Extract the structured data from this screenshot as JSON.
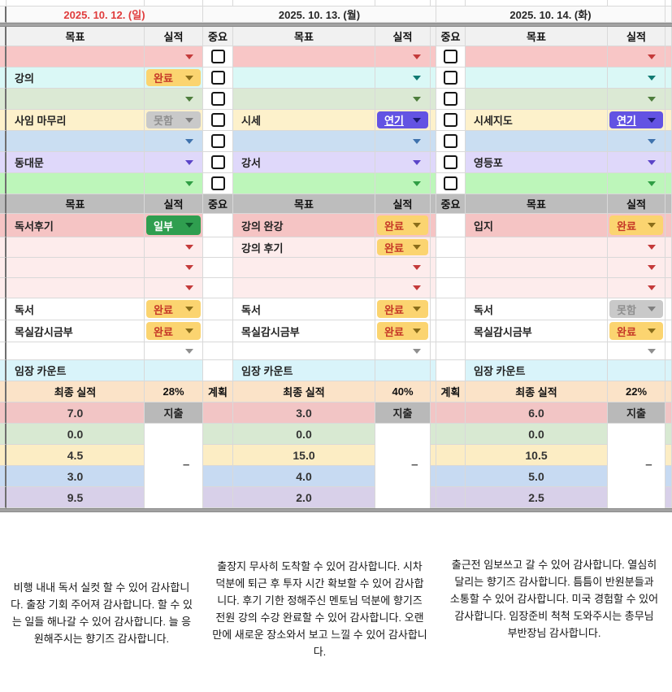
{
  "dates": [
    {
      "label": "2025. 10. 12. (일)",
      "color": "#e03c3c"
    },
    {
      "label": "2025. 10. 13. (월)",
      "color": "#262626"
    },
    {
      "label": "2025. 10. 14. (화)",
      "color": "#262626"
    }
  ],
  "column_headers": {
    "goal": "목표",
    "result": "실적",
    "important": "중요",
    "plan": "계획"
  },
  "summary": {
    "final_result_label": "최종 실적",
    "percents": [
      "28%",
      "40%",
      "22%"
    ],
    "expense_label": "지출",
    "dash": "–"
  },
  "chips": {
    "done": {
      "label": "완료",
      "bg": "#fbd470",
      "fg": "#c53727",
      "arrow": "#8a6d1a",
      "underline": false
    },
    "partial": {
      "label": "일부",
      "bg": "#2f9e4f",
      "fg": "#ffffff",
      "arrow": "#0d5c2b",
      "underline": false
    },
    "missed": {
      "label": "못함",
      "bg": "#c9c9c9",
      "fg": "#8f8f8f",
      "arrow": "#7f7f7f",
      "underline": false
    },
    "delayed": {
      "label": "연기",
      "bg": "#6353e3",
      "fg": "#ffffff",
      "arrow": "#1a1a70",
      "underline": true
    }
  },
  "arrows": {
    "red": "#c43a3a",
    "teal": "#117a72",
    "green": "#4d7d3c",
    "blue": "#3f72ad",
    "violet": "#5b44c8",
    "green2": "#2f9e44",
    "gray": "#8f8f8f"
  },
  "bands": {
    "pink": "#f8c6c6",
    "cyan": "#daf8f6",
    "sage": "#dbe9d4",
    "cream": "#fdf1cb",
    "blue": "#cadef2",
    "lav": "#dfd8fa",
    "green": "#bdf6ba",
    "pinkStrong": "#f5c4c4",
    "pinkPale": "#fdecec",
    "white": "#ffffff",
    "cyanPale": "#d9f4fa",
    "s3pink": "#f2c5c5",
    "s3green": "#d8e9d2",
    "s3cream": "#fcedc4",
    "s3blue": "#c7daf2",
    "s3purple": "#d8d0e9",
    "headerLight": "#f1f1f1",
    "headerDark": "#bdbdbd",
    "peach": "#fbe3c8",
    "expense": "#b9b9b9",
    "divider": "#a2a2a2",
    "dateBg": "#fafafa"
  },
  "section1": {
    "has_checkboxes": true,
    "rows": [
      {
        "band": "pink",
        "goals": [
          "",
          "",
          ""
        ],
        "results": [
          "arrow:red",
          "arrow:red",
          "arrow:red"
        ]
      },
      {
        "band": "cyan",
        "goals": [
          "강의",
          "",
          ""
        ],
        "results": [
          "chip:done",
          "arrow:teal",
          "arrow:teal"
        ]
      },
      {
        "band": "sage",
        "goals": [
          "",
          "",
          ""
        ],
        "results": [
          "arrow:green",
          "arrow:green",
          "arrow:green"
        ]
      },
      {
        "band": "cream",
        "goals": [
          "사임 마무리",
          "시세",
          "시세지도"
        ],
        "results": [
          "chip:missed",
          "chip:delayed",
          "chip:delayed"
        ]
      },
      {
        "band": "blue",
        "goals": [
          "",
          "",
          ""
        ],
        "results": [
          "arrow:blue",
          "arrow:blue",
          "arrow:blue"
        ]
      },
      {
        "band": "lav",
        "goals": [
          "동대문",
          "강서",
          "영등포"
        ],
        "results": [
          "arrow:violet",
          "arrow:violet",
          "arrow:violet"
        ]
      },
      {
        "band": "green",
        "goals": [
          "",
          "",
          ""
        ],
        "results": [
          "arrow:green2",
          "arrow:green2",
          "arrow:green2"
        ]
      }
    ]
  },
  "section2": {
    "has_checkboxes": false,
    "rows": [
      {
        "band": "pinkStrong",
        "goals": [
          "독서후기",
          "강의 완강",
          "입지"
        ],
        "results": [
          "chip:partial",
          "chip:done",
          "chip:done"
        ]
      },
      {
        "band": "pinkPale",
        "goals": [
          "",
          "강의 후기",
          ""
        ],
        "results": [
          "arrow:red",
          "chip:done",
          "arrow:red"
        ]
      },
      {
        "band": "pinkPale",
        "goals": [
          "",
          "",
          ""
        ],
        "results": [
          "arrow:red",
          "arrow:red",
          "arrow:red"
        ]
      },
      {
        "band": "pinkPale",
        "goals": [
          "",
          "",
          ""
        ],
        "results": [
          "arrow:red",
          "arrow:red",
          "arrow:red"
        ]
      },
      {
        "band": "white",
        "goals": [
          "독서",
          "독서",
          "독서"
        ],
        "results": [
          "chip:done",
          "chip:done",
          "chip:missed"
        ]
      },
      {
        "band": "white",
        "goals": [
          "목실감시금부",
          "목실감시금부",
          "목실감시금부"
        ],
        "results": [
          "chip:done",
          "chip:done",
          "chip:done"
        ]
      },
      {
        "band": "white",
        "goals": [
          "",
          "",
          ""
        ],
        "results": [
          "arrow:gray",
          "arrow:gray",
          "arrow:gray"
        ]
      },
      {
        "band": "cyanPale",
        "goals": [
          "임장 카운트",
          "임장 카운트",
          "임장 카운트"
        ],
        "results": [
          "none",
          "none",
          "none"
        ]
      }
    ]
  },
  "section3": {
    "row_bands": [
      "s3pink",
      "s3green",
      "s3cream",
      "s3blue",
      "s3purple"
    ],
    "values_by_day": [
      [
        "7.0",
        "0.0",
        "4.5",
        "3.0",
        "9.5"
      ],
      [
        "3.0",
        "0.0",
        "15.0",
        "4.0",
        "2.0"
      ],
      [
        "6.0",
        "0.0",
        "10.5",
        "5.0",
        "2.5"
      ]
    ]
  },
  "notes": [
    "비행 내내 독서 실컷 할 수 있어 감사합니다. 출장 기회 주어져 감사합니다. 할 수 있는 일들 해나갈 수 있어 감사합니다. 늘 응원해주시는 향기즈 감사합니다.",
    "출장지 무사히 도착할 수 있어 감사합니다. 시차 덕분에 퇴근 후 투자 시간 확보할 수 있어 감사합니다. 후기 기한 정해주신 멘토님 덕분에 향기즈 전원 강의 수강 완료할 수 있어 감사합니다. 오랜만에 새로운 장소와서 보고 느낄 수 있어 감사합니다.",
    "출근전 임보쓰고 갈 수 있어 감사합니다. 열심히 달리는 향기즈 감사합니다. 틈틈이 반원분들과 소통할 수 있어 감사합니다. 미국 경험할 수 있어 감사합니다. 임장준비 척척 도와주시는 총무님 부반장님 감사합니다."
  ]
}
